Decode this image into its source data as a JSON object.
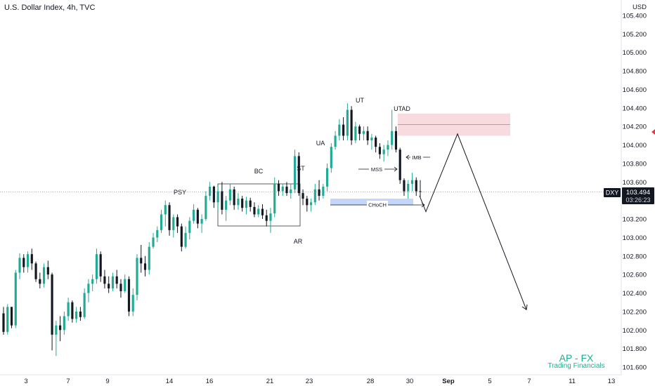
{
  "header": {
    "title": "U.S. Dollar Index, 4h, TVC"
  },
  "watermark": {
    "line1": "AP - FX",
    "line2": "Trading Financials"
  },
  "price_scale": {
    "currency": "USD",
    "symbol": "DXY",
    "last_price": "103.494",
    "countdown": "03:26:23"
  },
  "colors": {
    "up": "#22ab94",
    "down": "#131722",
    "supply_zone": "#f6cfd3",
    "demand_zone": "#bcd0f7",
    "alert": "#f23645"
  },
  "chart_data": {
    "type": "candlestick",
    "title": "U.S. Dollar Index, 4h, TVC",
    "y_ticks": [
      "101.600",
      "101.800",
      "102.000",
      "102.200",
      "102.400",
      "102.600",
      "102.800",
      "103.000",
      "103.200",
      "103.400",
      "103.600",
      "103.800",
      "104.000",
      "104.200",
      "104.400",
      "104.600",
      "104.800",
      "105.000",
      "105.200",
      "105.400"
    ],
    "ylim": [
      101.55,
      105.47
    ],
    "x_ticks": [
      "3",
      "7",
      "9",
      "14",
      "16",
      "21",
      "23",
      "28",
      "30",
      "Sep",
      "5",
      "7",
      "11",
      "13"
    ],
    "candles": [
      [
        102.18,
        102.25,
        101.95,
        101.98
      ],
      [
        101.98,
        102.28,
        101.95,
        102.25
      ],
      [
        102.25,
        102.25,
        102.02,
        102.05
      ],
      [
        102.05,
        102.65,
        102.02,
        102.62
      ],
      [
        102.62,
        102.83,
        102.55,
        102.78
      ],
      [
        102.78,
        102.82,
        102.62,
        102.68
      ],
      [
        102.68,
        102.85,
        102.62,
        102.82
      ],
      [
        102.82,
        102.88,
        102.65,
        102.72
      ],
      [
        102.72,
        102.74,
        102.52,
        102.55
      ],
      [
        102.55,
        102.62,
        102.45,
        102.5
      ],
      [
        102.5,
        102.72,
        102.46,
        102.68
      ],
      [
        102.68,
        102.75,
        102.55,
        102.6
      ],
      [
        102.6,
        102.62,
        101.78,
        101.95
      ],
      [
        101.95,
        102.1,
        101.72,
        102.05
      ],
      [
        102.05,
        102.15,
        101.88,
        102.0
      ],
      [
        102.0,
        102.2,
        101.95,
        102.15
      ],
      [
        102.15,
        102.35,
        102.1,
        102.3
      ],
      [
        102.3,
        102.32,
        102.08,
        102.12
      ],
      [
        102.12,
        102.25,
        102.08,
        102.2
      ],
      [
        102.2,
        102.25,
        102.1,
        102.14
      ],
      [
        102.14,
        102.45,
        102.12,
        102.4
      ],
      [
        102.4,
        102.55,
        102.3,
        102.5
      ],
      [
        102.5,
        102.6,
        102.42,
        102.55
      ],
      [
        102.55,
        102.88,
        102.5,
        102.82
      ],
      [
        102.82,
        102.85,
        102.52,
        102.58
      ],
      [
        102.58,
        102.65,
        102.45,
        102.5
      ],
      [
        102.5,
        102.58,
        102.4,
        102.45
      ],
      [
        102.45,
        102.62,
        102.42,
        102.58
      ],
      [
        102.58,
        102.65,
        102.45,
        102.5
      ],
      [
        102.5,
        102.55,
        102.35,
        102.42
      ],
      [
        102.42,
        102.6,
        102.4,
        102.55
      ],
      [
        102.55,
        102.58,
        102.15,
        102.2
      ],
      [
        102.2,
        102.45,
        102.15,
        102.38
      ],
      [
        102.38,
        102.82,
        102.32,
        102.78
      ],
      [
        102.78,
        102.92,
        102.62,
        102.72
      ],
      [
        102.72,
        102.8,
        102.58,
        102.65
      ],
      [
        102.65,
        102.95,
        102.6,
        102.9
      ],
      [
        102.9,
        103.05,
        102.88,
        103.0
      ],
      [
        103.0,
        103.12,
        102.95,
        103.08
      ],
      [
        103.08,
        103.3,
        103.05,
        103.25
      ],
      [
        103.25,
        103.4,
        103.12,
        103.35
      ],
      [
        103.35,
        103.38,
        103.02,
        103.08
      ],
      [
        103.08,
        103.25,
        103.0,
        103.22
      ],
      [
        103.22,
        103.25,
        103.05,
        103.12
      ],
      [
        103.12,
        103.15,
        102.85,
        102.9
      ],
      [
        102.9,
        103.12,
        102.88,
        103.05
      ],
      [
        103.05,
        103.22,
        102.98,
        103.18
      ],
      [
        103.18,
        103.36,
        103.15,
        103.3
      ],
      [
        103.3,
        103.32,
        103.1,
        103.15
      ],
      [
        103.15,
        103.25,
        103.05,
        103.2
      ],
      [
        103.2,
        103.5,
        103.18,
        103.45
      ],
      [
        103.45,
        103.6,
        103.4,
        103.55
      ],
      [
        103.55,
        103.56,
        103.32,
        103.38
      ],
      [
        103.38,
        103.55,
        103.3,
        103.5
      ],
      [
        103.5,
        103.6,
        103.25,
        103.3
      ],
      [
        103.3,
        103.45,
        103.18,
        103.4
      ],
      [
        103.4,
        103.58,
        103.35,
        103.52
      ],
      [
        103.52,
        103.55,
        103.3,
        103.35
      ],
      [
        103.35,
        103.48,
        103.3,
        103.42
      ],
      [
        103.42,
        103.45,
        103.28,
        103.32
      ],
      [
        103.32,
        103.44,
        103.25,
        103.4
      ],
      [
        103.4,
        103.43,
        103.28,
        103.33
      ],
      [
        103.33,
        103.38,
        103.22,
        103.25
      ],
      [
        103.25,
        103.35,
        103.22,
        103.31
      ],
      [
        103.31,
        103.36,
        103.2,
        103.24
      ],
      [
        103.24,
        103.3,
        103.12,
        103.18
      ],
      [
        103.18,
        103.32,
        103.05,
        103.26
      ],
      [
        103.26,
        103.65,
        103.22,
        103.58
      ],
      [
        103.58,
        103.62,
        103.45,
        103.5
      ],
      [
        103.5,
        103.58,
        103.45,
        103.55
      ],
      [
        103.55,
        103.6,
        103.45,
        103.48
      ],
      [
        103.48,
        103.58,
        103.42,
        103.52
      ],
      [
        103.52,
        103.95,
        103.48,
        103.88
      ],
      [
        103.88,
        103.92,
        103.45,
        103.48
      ],
      [
        103.48,
        103.52,
        103.35,
        103.42
      ],
      [
        103.42,
        103.45,
        103.28,
        103.35
      ],
      [
        103.35,
        103.42,
        103.28,
        103.38
      ],
      [
        103.38,
        103.58,
        103.35,
        103.52
      ],
      [
        103.52,
        103.62,
        103.4,
        103.45
      ],
      [
        103.45,
        103.58,
        103.42,
        103.55
      ],
      [
        103.55,
        103.8,
        103.5,
        103.75
      ],
      [
        103.75,
        104.02,
        103.7,
        103.98
      ],
      [
        103.98,
        104.15,
        103.95,
        104.1
      ],
      [
        104.1,
        104.28,
        104.05,
        104.22
      ],
      [
        104.22,
        104.3,
        104.05,
        104.1
      ],
      [
        104.1,
        104.45,
        104.05,
        104.38
      ],
      [
        104.38,
        104.42,
        104.0,
        104.05
      ],
      [
        104.05,
        104.25,
        104.02,
        104.2
      ],
      [
        104.2,
        104.22,
        104.05,
        104.12
      ],
      [
        104.12,
        104.2,
        104.05,
        104.15
      ],
      [
        104.15,
        104.2,
        104.0,
        104.05
      ],
      [
        104.05,
        104.12,
        103.95,
        104.08
      ],
      [
        104.08,
        104.1,
        103.92,
        103.98
      ],
      [
        103.98,
        104.02,
        103.85,
        103.9
      ],
      [
        103.9,
        104.0,
        103.82,
        103.95
      ],
      [
        103.95,
        104.05,
        103.88,
        104.0
      ],
      [
        104.0,
        104.38,
        103.95,
        104.15
      ],
      [
        104.15,
        104.2,
        103.92,
        103.95
      ],
      [
        103.95,
        103.97,
        103.58,
        103.62
      ],
      [
        103.62,
        103.64,
        103.45,
        103.5
      ],
      [
        103.5,
        103.62,
        103.42,
        103.58
      ],
      [
        103.58,
        103.7,
        103.5,
        103.62
      ],
      [
        103.62,
        103.65,
        103.45,
        103.5
      ],
      [
        103.5,
        103.62,
        103.44,
        103.494
      ]
    ],
    "supply_zone": {
      "y": [
        104.1,
        104.34
      ],
      "mid": 104.22
    },
    "demand_zone": {
      "y": [
        103.35,
        103.42
      ]
    },
    "projection": [
      [
        103.45,
        103.28
      ],
      [
        104.12
      ],
      [
        102.22
      ]
    ],
    "annotations": [
      "PSY",
      "BC",
      "ST",
      "AR",
      "UA",
      "UT",
      "UTAD",
      "MSS",
      "IMB",
      "CHoCH"
    ]
  }
}
